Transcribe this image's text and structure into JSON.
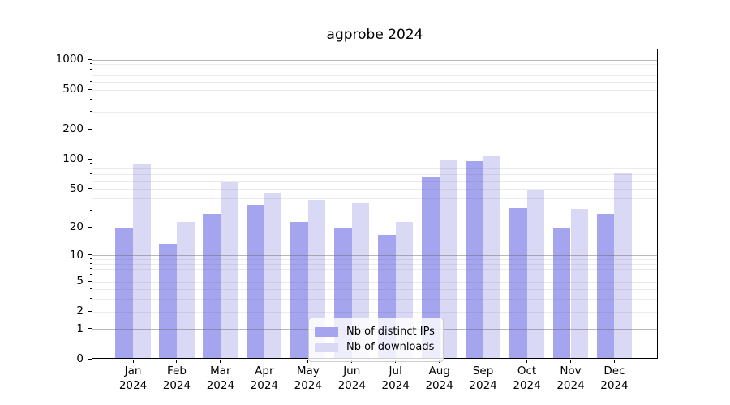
{
  "chart_data": {
    "type": "bar",
    "title": "agprobe 2024",
    "categories": [
      "Jan",
      "Feb",
      "Mar",
      "Apr",
      "May",
      "Jun",
      "Jul",
      "Aug",
      "Sep",
      "Oct",
      "Nov",
      "Dec"
    ],
    "category_year": "2024",
    "series": [
      {
        "name": "Nb of distinct IPs",
        "color": "#a5a5ef",
        "values": [
          19,
          13,
          27,
          33,
          22,
          19,
          16,
          65,
          92,
          31,
          19,
          27
        ]
      },
      {
        "name": "Nb of downloads",
        "color": "#d9d9f6",
        "values": [
          86,
          22,
          57,
          44,
          37,
          35,
          22,
          96,
          104,
          48,
          30,
          70
        ]
      }
    ],
    "xlabel": "",
    "ylabel": "",
    "yscale": "log1p",
    "yticks": [
      0,
      1,
      2,
      5,
      10,
      20,
      50,
      100,
      200,
      500,
      1000
    ],
    "minor_gridlines": [
      2,
      3,
      4,
      5,
      6,
      7,
      8,
      9,
      20,
      30,
      40,
      50,
      60,
      70,
      80,
      90,
      200,
      300,
      400,
      500,
      600,
      700,
      800,
      900
    ],
    "major_gridlines": [
      1,
      10,
      100,
      1000
    ],
    "ylim": [
      0,
      1280
    ],
    "grid": true,
    "legend_position": "lower center"
  },
  "colors": {
    "background": "#ffffff",
    "spine": "#000000",
    "major_grid": "#c6c6c6",
    "minor_grid": "#ededed",
    "legend_border": "#cccccc"
  }
}
